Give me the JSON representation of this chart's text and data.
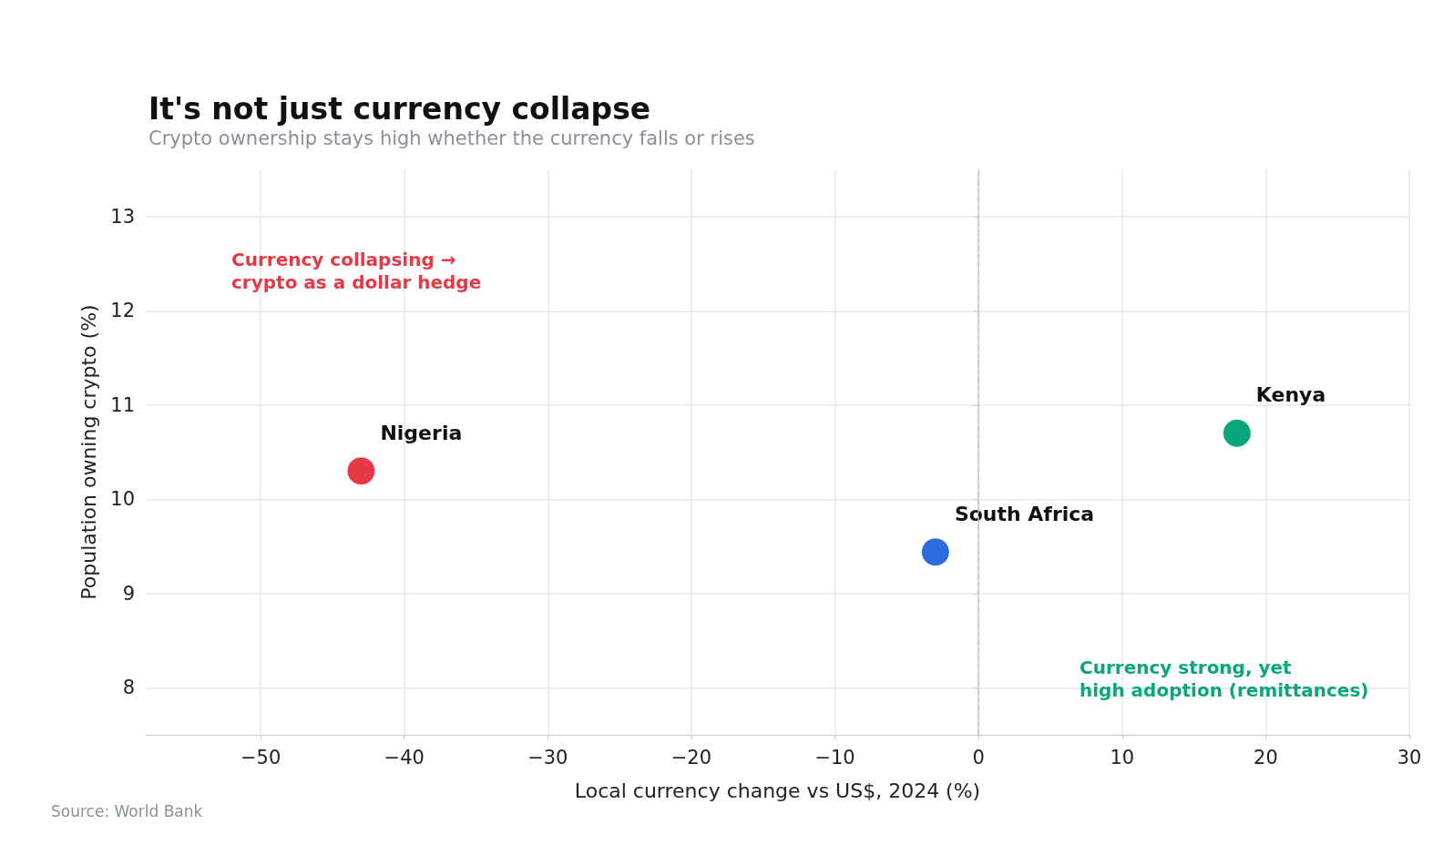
{
  "chart_data": {
    "type": "scatter",
    "title": "It's not just currency collapse",
    "subtitle": "Crypto ownership stays high whether the currency falls or rises",
    "xlabel": "Local currency change vs US$, 2024 (%)",
    "ylabel": "Population owning crypto (%)",
    "series": [
      {
        "name": "Nigeria",
        "color": "#e63946",
        "x": [
          -43
        ],
        "values": [
          10.3
        ]
      },
      {
        "name": "South Africa",
        "color": "#2b6cde",
        "x": [
          -3
        ],
        "values": [
          9.44
        ]
      },
      {
        "name": "Kenya",
        "color": "#06a77d",
        "x": [
          18
        ],
        "values": [
          10.7
        ]
      }
    ],
    "xlim": [
      -58,
      30
    ],
    "xticks": [
      -50,
      -40,
      -30,
      -20,
      -10,
      0,
      10,
      20,
      30
    ],
    "ylim": [
      7.5,
      13.5
    ],
    "yticks": [
      8,
      9,
      10,
      11,
      12,
      13
    ],
    "ref_lines": [
      {
        "axis": "x",
        "value": 0,
        "label": null,
        "color": "#c3c6cf",
        "line_style": "dashed"
      }
    ],
    "annotations": [
      "Currency collapsing →\ncrypto as a dollar hedge",
      "Currency strong, yet\nhigh adoption (remittances)",
      "Source: World Bank"
    ],
    "grid": true,
    "marker": "circle"
  }
}
